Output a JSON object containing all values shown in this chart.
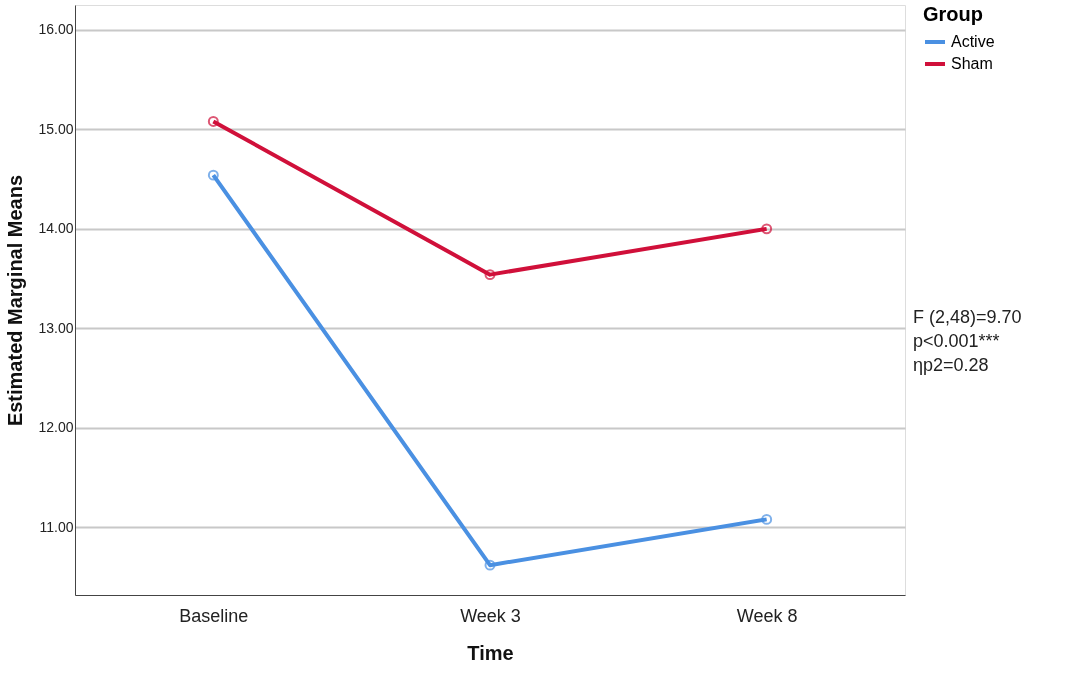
{
  "chart_data": {
    "type": "line",
    "xlabel": "Time",
    "ylabel": "Estimated Marginal Means",
    "legend_title": "Group",
    "categories": [
      "Baseline",
      "Week 3",
      "Week 8"
    ],
    "series": [
      {
        "name": "Active",
        "color": "#4a90e2",
        "values": [
          14.54,
          10.62,
          11.08
        ]
      },
      {
        "name": "Sham",
        "color": "#d0103a",
        "values": [
          15.08,
          13.54,
          14.0
        ]
      }
    ],
    "ylim": [
      10.32,
      16.25
    ],
    "yticks": [
      {
        "value": 11,
        "label": "11.00"
      },
      {
        "value": 12,
        "label": "12.00"
      },
      {
        "value": 13,
        "label": "13.00"
      },
      {
        "value": 14,
        "label": "14.00"
      },
      {
        "value": 15,
        "label": "15.00"
      },
      {
        "value": 16,
        "label": "16.00"
      }
    ],
    "grid": "y",
    "legend": "top right",
    "marker": "circle",
    "line_style": "solid",
    "annotations": [
      "F (2,48)=9.70",
      "p<0.001***",
      "ηp2=0.28"
    ]
  }
}
